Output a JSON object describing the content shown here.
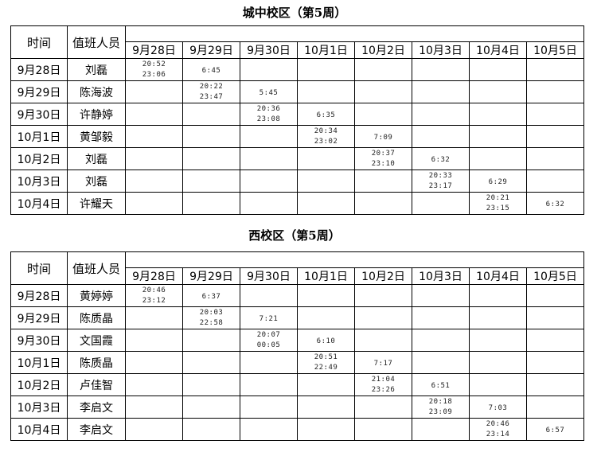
{
  "days": [
    "9月28日",
    "9月29日",
    "9月30日",
    "10月1日",
    "10月2日",
    "10月3日",
    "10月4日",
    "10月5日"
  ],
  "headers": {
    "time": "时间",
    "person": "值班人员"
  },
  "tables": [
    {
      "title": "城中校区（第5周）",
      "rows": [
        {
          "date": "9月28日",
          "person": "刘磊",
          "cells": [
            [
              "20:52",
              "23:06"
            ],
            [
              "6:45"
            ],
            [],
            [],
            [],
            [],
            [],
            []
          ]
        },
        {
          "date": "9月29日",
          "person": "陈海波",
          "cells": [
            [],
            [
              "20:22",
              "23:47"
            ],
            [
              "5:45"
            ],
            [],
            [],
            [],
            [],
            []
          ]
        },
        {
          "date": "9月30日",
          "person": "许静婷",
          "cells": [
            [],
            [],
            [
              "20:36",
              "23:08"
            ],
            [
              "6:35"
            ],
            [],
            [],
            [],
            []
          ]
        },
        {
          "date": "10月1日",
          "person": "黄邹毅",
          "cells": [
            [],
            [],
            [],
            [
              "20:34",
              "23:02"
            ],
            [
              "7:09"
            ],
            [],
            [],
            []
          ]
        },
        {
          "date": "10月2日",
          "person": "刘磊",
          "cells": [
            [],
            [],
            [],
            [],
            [
              "20:37",
              "23:10"
            ],
            [
              "6:32"
            ],
            [],
            []
          ]
        },
        {
          "date": "10月3日",
          "person": "刘磊",
          "cells": [
            [],
            [],
            [],
            [],
            [],
            [
              "20:33",
              "23:17"
            ],
            [
              "6:29"
            ],
            []
          ]
        },
        {
          "date": "10月4日",
          "person": "许耀天",
          "cells": [
            [],
            [],
            [],
            [],
            [],
            [],
            [
              "20:21",
              "23:15"
            ],
            [
              "6:32"
            ]
          ]
        }
      ]
    },
    {
      "title": "西校区（第5周）",
      "rows": [
        {
          "date": "9月28日",
          "person": "黄婷婷",
          "cells": [
            [
              "20:46",
              "23:12"
            ],
            [
              "6:37"
            ],
            [],
            [],
            [],
            [],
            [],
            []
          ]
        },
        {
          "date": "9月29日",
          "person": "陈质晶",
          "cells": [
            [],
            [
              "20:03",
              "22:58"
            ],
            [
              "7:21"
            ],
            [],
            [],
            [],
            [],
            []
          ]
        },
        {
          "date": "9月30日",
          "person": "文国霞",
          "cells": [
            [],
            [],
            [
              "20:07",
              "00:05"
            ],
            [
              "6:10"
            ],
            [],
            [],
            [],
            []
          ]
        },
        {
          "date": "10月1日",
          "person": "陈质晶",
          "cells": [
            [],
            [],
            [],
            [
              "20:51",
              "22:49"
            ],
            [
              "7:17"
            ],
            [],
            [],
            []
          ]
        },
        {
          "date": "10月2日",
          "person": "卢佳智",
          "cells": [
            [],
            [],
            [],
            [],
            [
              "21:04",
              "23:26"
            ],
            [
              "6:51"
            ],
            [],
            []
          ]
        },
        {
          "date": "10月3日",
          "person": "李启文",
          "cells": [
            [],
            [],
            [],
            [],
            [],
            [
              "20:18",
              "23:09"
            ],
            [
              "7:03"
            ],
            []
          ]
        },
        {
          "date": "10月4日",
          "person": "李启文",
          "cells": [
            [],
            [],
            [],
            [],
            [],
            [],
            [
              "20:46",
              "23:14"
            ],
            [
              "6:57"
            ]
          ]
        }
      ]
    }
  ]
}
